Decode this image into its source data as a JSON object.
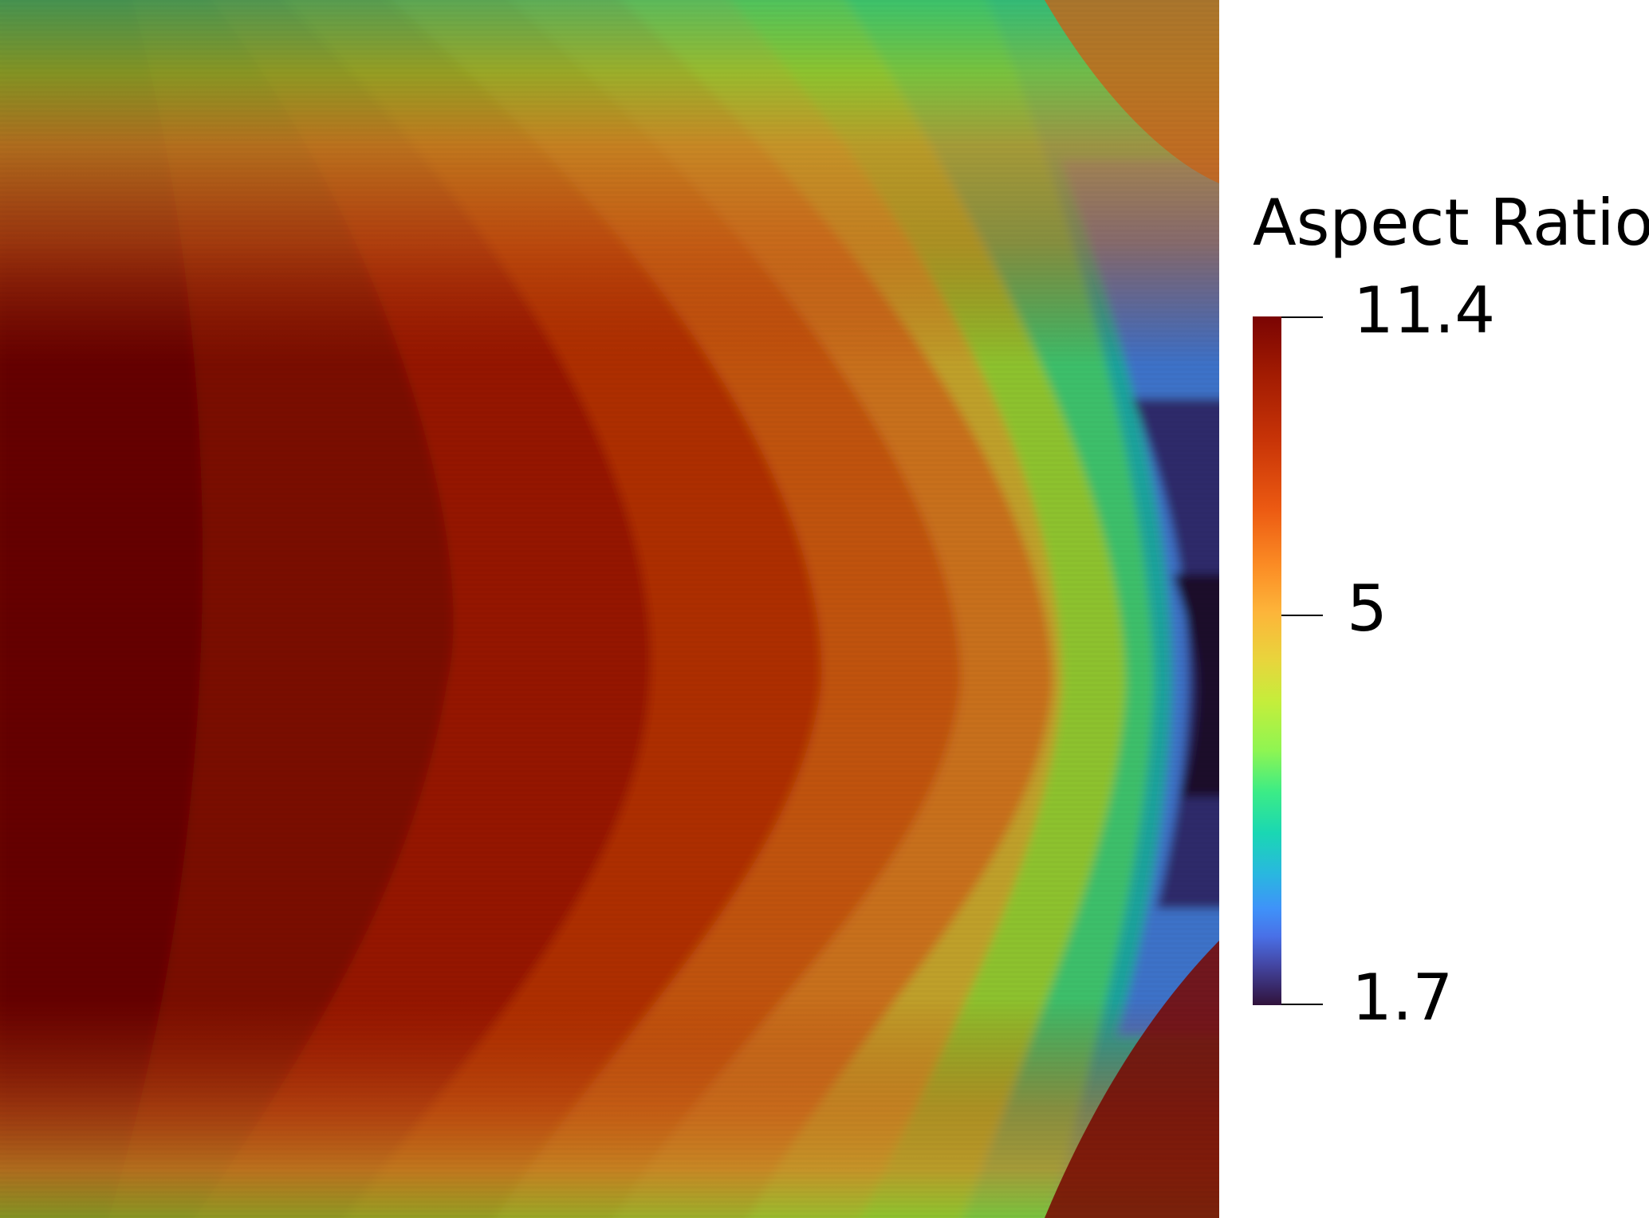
{
  "legend": {
    "title": "Aspect Ratio",
    "max_label": "11.4",
    "mid_label": "5",
    "min_label": "1.7",
    "max_value": 11.4,
    "mid_value": 5,
    "min_value": 1.7,
    "colormap": "turbo"
  },
  "colors": {
    "darkest_red": "#650300",
    "dark_red": "#800c00",
    "red": "#9c1d02",
    "red_orange": "#b03005",
    "orange": "#c8641a",
    "ochre": "#c89028",
    "olive_yellow": "#b2b02a",
    "yellow_green": "#8ec42f",
    "green": "#3fc16a",
    "teal": "#1fa39c",
    "blue": "#3c72c8",
    "indigo": "#2f2a6a",
    "deep_purple": "#1c0c2c"
  }
}
